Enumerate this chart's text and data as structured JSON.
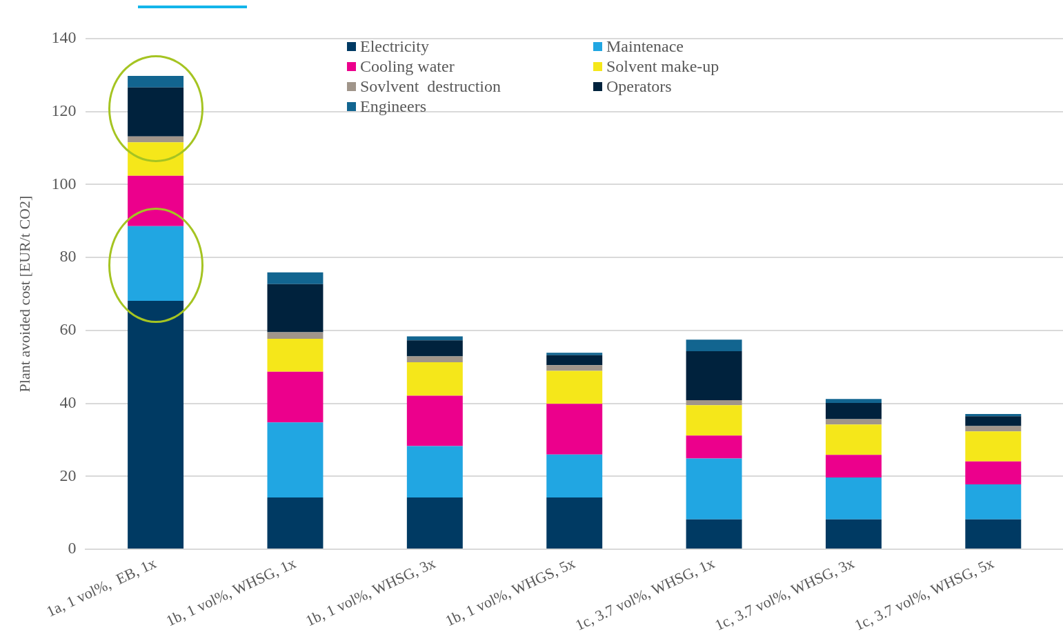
{
  "chart_data": {
    "type": "bar",
    "stacked": true,
    "ylabel": "Plant avoided cost [EUR/t CO2]",
    "categories": [
      "1a, 1 vol%,  EB, 1x",
      "1b, 1 vol%, WHSG, 1x",
      "1b, 1 vol%, WHSG, 3x",
      "1b, 1 vol%, WHGS, 5x",
      "1c, 3.7 vol%, WHSG, 1x",
      "1c, 3.7 vol%, WHSG, 3x",
      "1c, 3.7 vol%, WHSG, 5x"
    ],
    "series": [
      {
        "name": "Electricity",
        "color": "#003a63",
        "values": [
          68.1,
          14.2,
          14.2,
          14.2,
          8.2,
          8.2,
          8.2
        ]
      },
      {
        "name": "Maintenace",
        "color": "#21a6e2",
        "values": [
          20.5,
          20.6,
          14.1,
          11.8,
          16.7,
          11.5,
          9.6
        ]
      },
      {
        "name": "Cooling water",
        "color": "#ec008c",
        "values": [
          13.8,
          13.9,
          13.8,
          13.9,
          6.3,
          6.2,
          6.3
        ]
      },
      {
        "name": "Solvent make-up",
        "color": "#f5e71a",
        "values": [
          9.2,
          9.0,
          9.2,
          9.0,
          8.3,
          8.3,
          8.2
        ]
      },
      {
        "name": "Sovlvent  destruction",
        "color": "#a0958a",
        "values": [
          1.6,
          1.8,
          1.6,
          1.6,
          1.4,
          1.5,
          1.5
        ]
      },
      {
        "name": "Operators",
        "color": "#00223d",
        "values": [
          13.4,
          13.2,
          4.4,
          2.7,
          13.4,
          4.4,
          2.7
        ]
      },
      {
        "name": "Engineers",
        "color": "#126590",
        "values": [
          3.2,
          3.2,
          1.1,
          0.7,
          3.2,
          1.1,
          0.6
        ]
      }
    ],
    "ylim": [
      0,
      140
    ],
    "yticks": [
      0,
      20,
      40,
      60,
      80,
      100,
      120,
      140
    ],
    "grid": "y",
    "legend": "top"
  }
}
